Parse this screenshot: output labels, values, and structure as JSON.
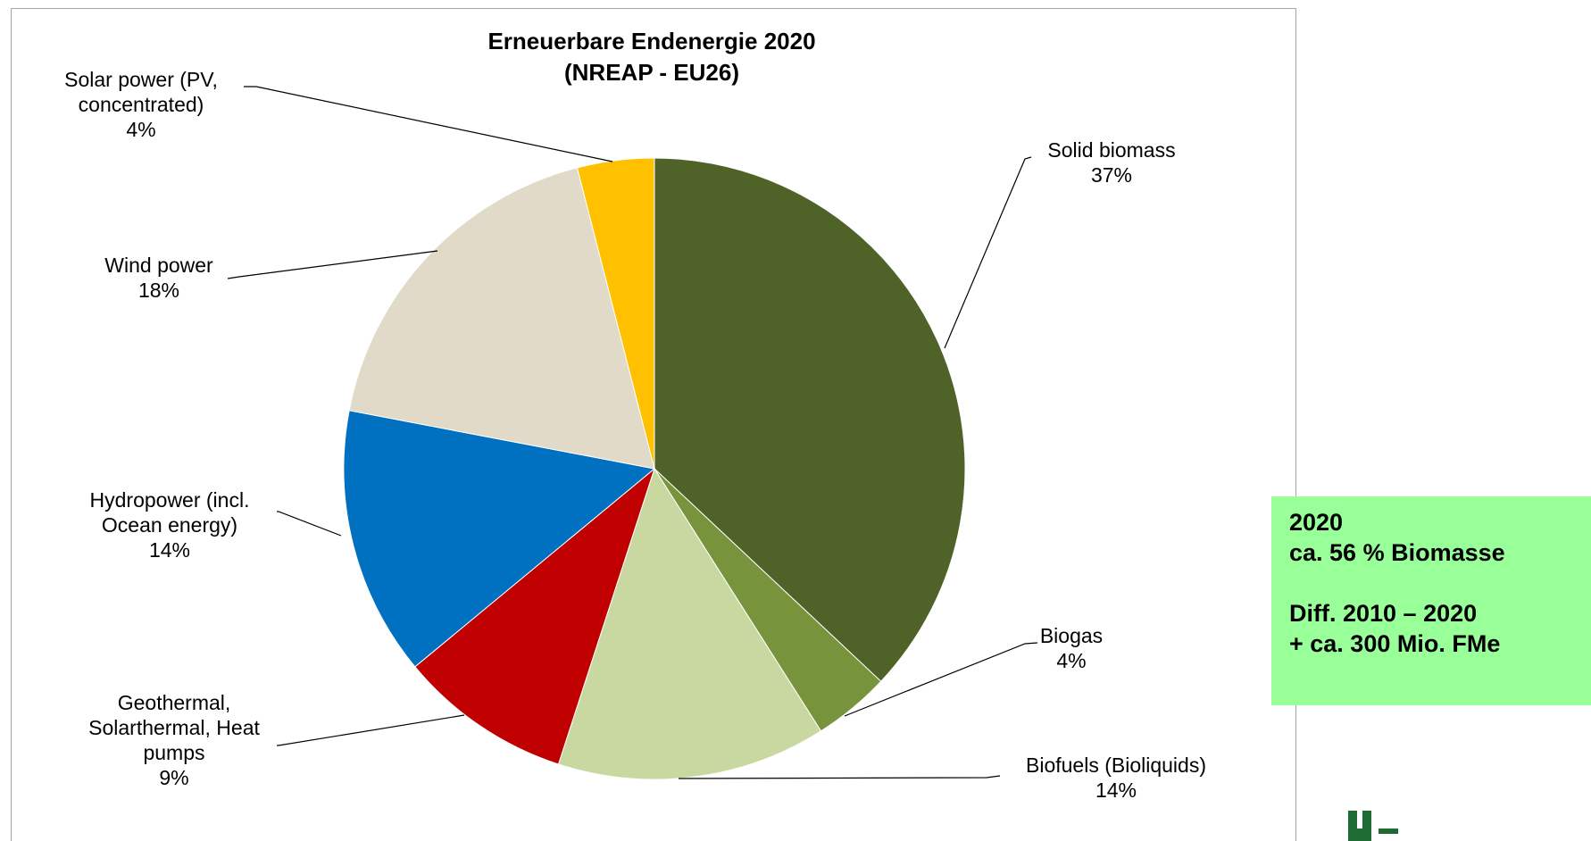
{
  "chart_data": {
    "type": "pie",
    "title": [
      "Erneuerbare  Endenergie  2020",
      "(NREAP - EU26)"
    ],
    "start_angle_deg": 0,
    "direction": "clockwise",
    "slices": [
      {
        "name": "Solid biomass",
        "label_lines": [
          "Solid biomass",
          "37%"
        ],
        "value": 37,
        "color": "#4f6228"
      },
      {
        "name": "Biogas",
        "label_lines": [
          "Biogas",
          "4%"
        ],
        "value": 4,
        "color": "#77933c"
      },
      {
        "name": "Biofuels (Bioliquids)",
        "label_lines": [
          "Biofuels (Bioliquids)",
          "14%"
        ],
        "value": 14,
        "color": "#c9d8a1"
      },
      {
        "name": "Geothermal, Solarthermal, Heat pumps",
        "label_lines": [
          "Geothermal,",
          "Solarthermal, Heat",
          "pumps",
          "9%"
        ],
        "value": 9,
        "color": "#c00000"
      },
      {
        "name": "Hydropower (incl. Ocean energy)",
        "label_lines": [
          "Hydropower (incl.",
          "Ocean energy)",
          "14%"
        ],
        "value": 14,
        "color": "#0070c0"
      },
      {
        "name": "Wind power",
        "label_lines": [
          "Wind power",
          "18%"
        ],
        "value": 18,
        "color": "#e1dac8"
      },
      {
        "name": "Solar power (PV, concentrated)",
        "label_lines": [
          "Solar power (PV,",
          "concentrated)",
          "4%"
        ],
        "value": 4,
        "color": "#ffc000"
      }
    ]
  },
  "info_box": {
    "lines": [
      "2020",
      "ca. 56 % Biomasse",
      "",
      "Diff. 2010 – 2020",
      "+ ca. 300 Mio. FMe"
    ],
    "background": "#99ff99"
  },
  "logo": {
    "color": "#1e6b34"
  }
}
